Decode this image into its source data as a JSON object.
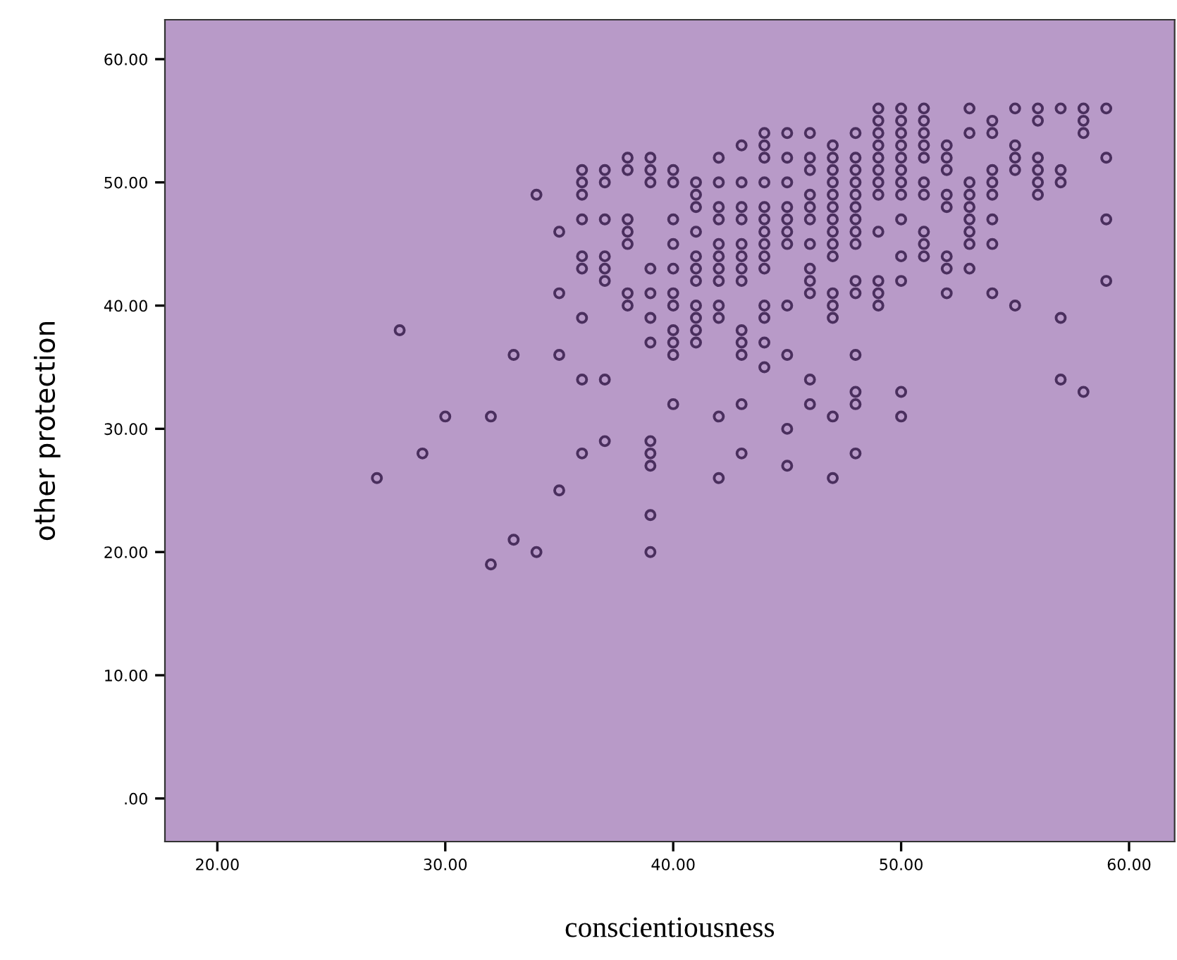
{
  "chart_data": {
    "type": "scatter",
    "xlabel": "conscientiousness",
    "ylabel": "other protection",
    "x": [
      27,
      28,
      29,
      30,
      32,
      32,
      33,
      33,
      34,
      34,
      35,
      35,
      35,
      35,
      36,
      36,
      36,
      36,
      36,
      36,
      36,
      36,
      36,
      37,
      37,
      37,
      37,
      37,
      37,
      37,
      37,
      38,
      38,
      38,
      38,
      38,
      38,
      38,
      39,
      39,
      39,
      39,
      39,
      39,
      39,
      39,
      39,
      39,
      39,
      39,
      40,
      40,
      40,
      40,
      40,
      40,
      40,
      40,
      40,
      40,
      40,
      41,
      41,
      41,
      41,
      41,
      41,
      41,
      41,
      41,
      41,
      41,
      42,
      42,
      42,
      42,
      42,
      42,
      42,
      42,
      42,
      42,
      42,
      42,
      43,
      43,
      43,
      43,
      43,
      43,
      43,
      43,
      43,
      43,
      43,
      43,
      43,
      44,
      44,
      44,
      44,
      44,
      44,
      44,
      44,
      44,
      44,
      44,
      44,
      44,
      44,
      45,
      45,
      45,
      45,
      45,
      45,
      45,
      45,
      45,
      45,
      45,
      46,
      46,
      46,
      46,
      46,
      46,
      46,
      46,
      46,
      46,
      46,
      46,
      47,
      47,
      47,
      47,
      47,
      47,
      47,
      47,
      47,
      47,
      47,
      47,
      47,
      47,
      47,
      48,
      48,
      48,
      48,
      48,
      48,
      48,
      48,
      48,
      48,
      48,
      48,
      48,
      48,
      48,
      49,
      49,
      49,
      49,
      49,
      49,
      49,
      49,
      49,
      49,
      49,
      49,
      50,
      50,
      50,
      50,
      50,
      50,
      50,
      50,
      50,
      50,
      50,
      50,
      50,
      51,
      51,
      51,
      51,
      51,
      51,
      51,
      51,
      51,
      51,
      52,
      52,
      52,
      52,
      52,
      52,
      52,
      52,
      53,
      53,
      53,
      53,
      53,
      53,
      53,
      53,
      53,
      54,
      54,
      54,
      54,
      54,
      54,
      54,
      54,
      55,
      55,
      55,
      55,
      55,
      56,
      56,
      56,
      56,
      56,
      56,
      57,
      57,
      57,
      57,
      57,
      58,
      58,
      58,
      58,
      59,
      59,
      59,
      59
    ],
    "values": [
      26,
      38,
      28,
      31,
      31,
      19,
      36,
      21,
      49,
      20,
      46,
      41,
      36,
      25,
      51,
      50,
      49,
      47,
      44,
      43,
      39,
      34,
      28,
      51,
      50,
      47,
      44,
      43,
      42,
      34,
      29,
      52,
      51,
      47,
      46,
      45,
      41,
      40,
      52,
      51,
      50,
      43,
      41,
      39,
      37,
      29,
      28,
      27,
      23,
      20,
      51,
      50,
      47,
      45,
      43,
      41,
      40,
      38,
      37,
      36,
      32,
      50,
      49,
      48,
      46,
      44,
      43,
      42,
      40,
      39,
      38,
      37,
      52,
      50,
      48,
      47,
      45,
      44,
      43,
      42,
      40,
      39,
      31,
      26,
      53,
      50,
      48,
      47,
      45,
      44,
      43,
      42,
      38,
      37,
      36,
      32,
      28,
      54,
      53,
      52,
      50,
      48,
      47,
      46,
      45,
      44,
      43,
      40,
      39,
      37,
      35,
      54,
      52,
      50,
      48,
      47,
      46,
      45,
      40,
      36,
      30,
      27,
      54,
      52,
      51,
      49,
      48,
      47,
      45,
      43,
      42,
      41,
      34,
      32,
      53,
      52,
      51,
      50,
      49,
      48,
      47,
      46,
      45,
      44,
      41,
      40,
      39,
      31,
      26,
      54,
      52,
      51,
      50,
      49,
      48,
      47,
      46,
      45,
      42,
      41,
      36,
      33,
      32,
      28,
      56,
      55,
      54,
      53,
      52,
      51,
      50,
      49,
      46,
      42,
      41,
      40,
      56,
      55,
      54,
      53,
      52,
      51,
      50,
      49,
      47,
      44,
      42,
      33,
      31,
      56,
      55,
      54,
      53,
      52,
      50,
      49,
      46,
      45,
      44,
      53,
      52,
      51,
      49,
      48,
      44,
      43,
      41,
      56,
      54,
      50,
      49,
      48,
      47,
      46,
      45,
      43,
      55,
      54,
      51,
      50,
      49,
      47,
      45,
      41,
      56,
      53,
      52,
      51,
      40,
      56,
      55,
      52,
      51,
      50,
      49,
      56,
      51,
      50,
      39,
      34,
      56,
      55,
      54,
      33,
      56,
      52,
      47,
      42
    ],
    "color": "#4a2f5e",
    "marker": "circle",
    "xlim": [
      17.7,
      62
    ],
    "ylim": [
      -3.5,
      63.2
    ],
    "xticks": [
      {
        "value": 20,
        "label": "20.00"
      },
      {
        "value": 30,
        "label": "30.00"
      },
      {
        "value": 40,
        "label": "40.00"
      },
      {
        "value": 50,
        "label": "50.00"
      },
      {
        "value": 60,
        "label": "60.00"
      }
    ],
    "yticks": [
      {
        "value": 0,
        "label": ".00"
      },
      {
        "value": 10,
        "label": "10.00"
      },
      {
        "value": 20,
        "label": "20.00"
      },
      {
        "value": 30,
        "label": "30.00"
      },
      {
        "value": 40,
        "label": "40.00"
      },
      {
        "value": 50,
        "label": "50.00"
      },
      {
        "value": 60,
        "label": "60.00"
      }
    ],
    "grid": false,
    "legend": false
  }
}
